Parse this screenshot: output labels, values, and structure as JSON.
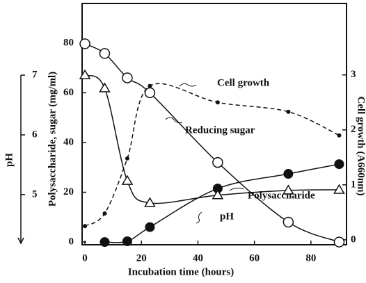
{
  "chart_data": {
    "type": "line",
    "xlabel": "Incubation time (hours)",
    "ylabel": "Polysaccharide, sugar (mg/ml)",
    "y2label": "Cell growth (A660nm)",
    "y3label": "pH",
    "x": [
      0,
      7,
      15,
      23,
      47,
      72,
      90
    ],
    "xlim": [
      -1,
      92.6
    ],
    "xticks": [
      0,
      20,
      40,
      60,
      80
    ],
    "ylim": [
      -1.1,
      95.9
    ],
    "yticks": [
      0,
      20,
      40,
      60,
      80
    ],
    "y2lim": [
      -0.09,
      4.3
    ],
    "y2ticks": [
      0,
      1,
      2,
      3
    ],
    "y3lim": [
      4.16,
      8.2
    ],
    "y3ticks": [
      5,
      6,
      7
    ],
    "series": [
      {
        "name": "Reducing sugar",
        "color": "#111",
        "marker": "open-circle",
        "dash": false,
        "axis": "y",
        "values": [
          79.7,
          75.8,
          66,
          60,
          32,
          8,
          0
        ]
      },
      {
        "name": "Polysaccharide",
        "color": "#111",
        "marker": "filled-circle",
        "dash": false,
        "axis": "y",
        "values": [
          null,
          0,
          0.3,
          6,
          21.5,
          27.4,
          31.3
        ]
      },
      {
        "name": "pH",
        "color": "#111",
        "marker": "open-triangle",
        "dash": false,
        "axis": "y3",
        "values": [
          7.0,
          6.78,
          5.23,
          4.86,
          4.99,
          5.07,
          5.08
        ]
      },
      {
        "name": "Cell growth",
        "color": "#111",
        "marker": "dot",
        "dash": true,
        "axis": "y2",
        "values": [
          0.25,
          0.48,
          1.48,
          2.8,
          2.5,
          2.33,
          1.9
        ]
      }
    ]
  }
}
